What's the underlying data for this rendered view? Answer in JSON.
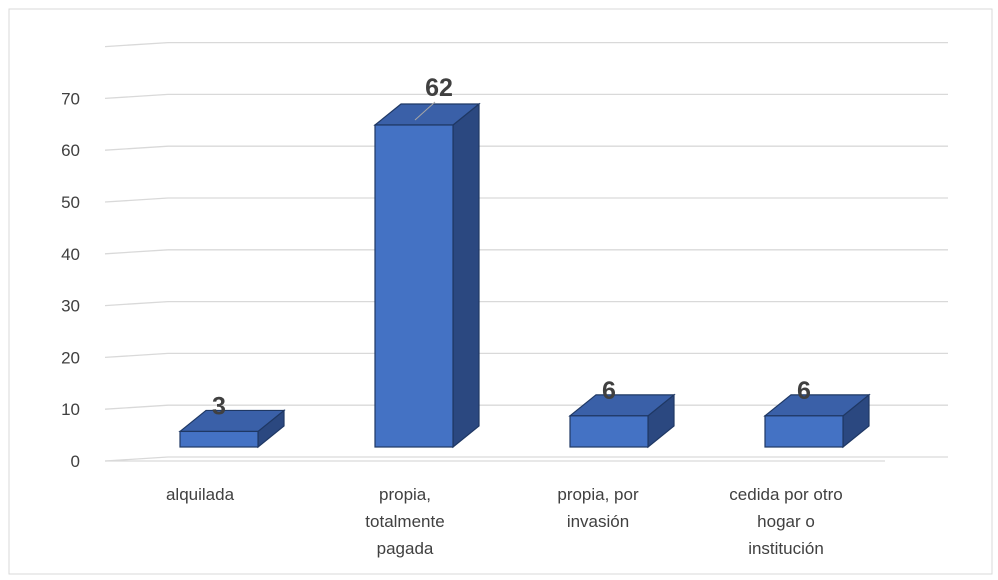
{
  "chart_data": {
    "type": "bar",
    "categories": [
      [
        "alquilada"
      ],
      [
        "propia,",
        "totalmente",
        "pagada"
      ],
      [
        "propia, por",
        "invasión"
      ],
      [
        "cedida por otro",
        "hogar o",
        "institución"
      ]
    ],
    "values": [
      3,
      62,
      6,
      6
    ],
    "data_labels": [
      "3",
      "62",
      "6",
      "6"
    ],
    "y_ticks": [
      "0",
      "10",
      "20",
      "30",
      "40",
      "50",
      "60",
      "70"
    ],
    "ylim": [
      0,
      70
    ],
    "grid": true,
    "legend": "none",
    "title": "",
    "xlabel": "",
    "ylabel": "",
    "colors": {
      "front": "#4472C4",
      "top": "#3A60A8",
      "side": "#2B4880",
      "edge": "#1F3864",
      "grid": "#D9D9D9",
      "frame": "#D9D9D9"
    }
  }
}
